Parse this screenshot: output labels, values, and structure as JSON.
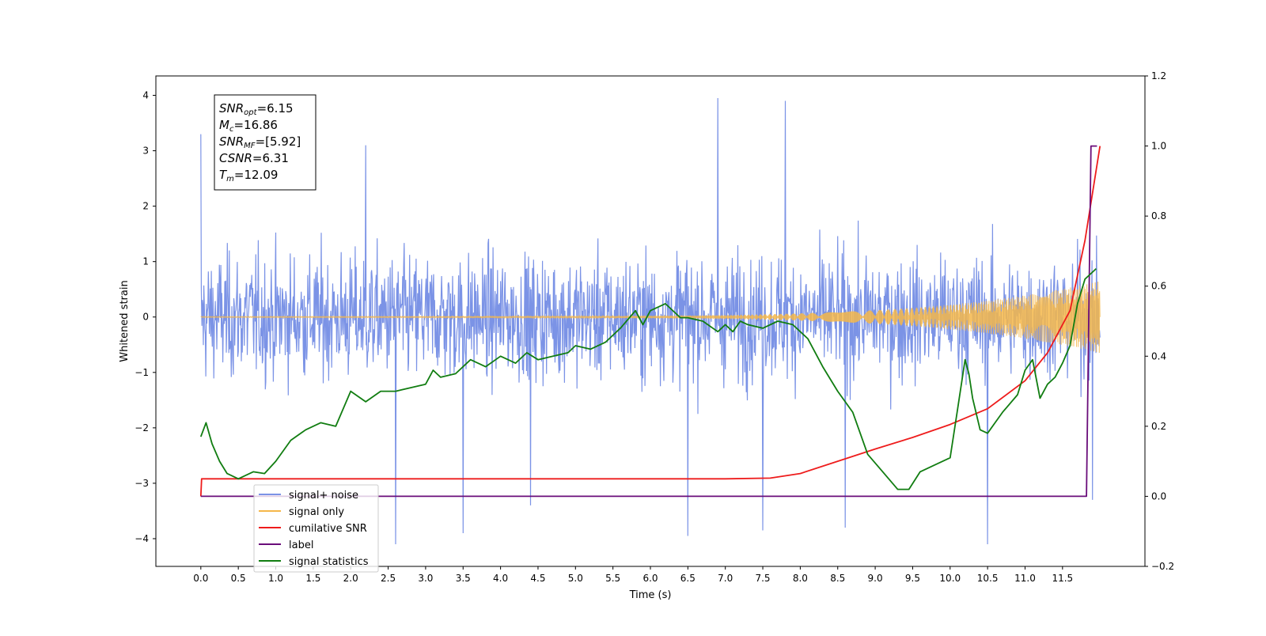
{
  "chart_data": {
    "type": "line",
    "xlabel": "Time (s)",
    "ylabel_left": "Whitened strain",
    "ylabel_right": "",
    "xlim": [
      -0.6,
      12.6
    ],
    "ylim_left": [
      -4.5,
      4.35
    ],
    "ylim_right": [
      -0.2,
      1.2
    ],
    "x_ticks": [
      0.0,
      0.5,
      1.0,
      1.5,
      2.0,
      2.5,
      3.0,
      3.5,
      4.0,
      4.5,
      5.0,
      5.5,
      6.0,
      6.5,
      7.0,
      7.5,
      8.0,
      8.5,
      9.0,
      9.5,
      10.0,
      10.5,
      11.0,
      11.5
    ],
    "x_tick_labels": [
      "0.0",
      "0.5",
      "1.0",
      "1.5",
      "2.0",
      "2.5",
      "3.0",
      "3.5",
      "4.0",
      "4.5",
      "5.0",
      "5.5",
      "6.0",
      "6.5",
      "7.0",
      "7.5",
      "8.0",
      "8.5",
      "9.0",
      "9.5",
      "10.0",
      "10.5",
      "11.0",
      "11.5"
    ],
    "y_ticks_left": [
      -4,
      -3,
      -2,
      -1,
      0,
      1,
      2,
      3,
      4
    ],
    "y_tick_labels_left": [
      "−4",
      "−3",
      "−2",
      "−1",
      "0",
      "1",
      "2",
      "3",
      "4"
    ],
    "y_ticks_right": [
      -0.2,
      0.0,
      0.2,
      0.4,
      0.6,
      0.8,
      1.0,
      1.2
    ],
    "y_tick_labels_right": [
      "−0.2",
      "0.0",
      "0.2",
      "0.4",
      "0.6",
      "0.8",
      "1.0",
      "1.2"
    ],
    "grid": false,
    "legend_placement": "lower-left",
    "annotation_box": {
      "lines": [
        {
          "main": "SNR",
          "sub": "opt",
          "rest": "=6.15"
        },
        {
          "main": "M",
          "sub": "c",
          "rest": "=16.86"
        },
        {
          "main": "SNR",
          "sub": "MF",
          "rest": "=[5.92]"
        },
        {
          "main": "CSNR",
          "sub": "",
          "rest": "=6.31"
        },
        {
          "main": "T",
          "sub": "m",
          "rest": "=12.09"
        }
      ]
    },
    "series": [
      {
        "name": "signal+ noise",
        "axis": "left",
        "color": "#7b93e6",
        "style": "noise",
        "x_range": [
          0.0,
          12.0
        ],
        "typical_range": [
          -1.5,
          1.5
        ],
        "extremes": [
          {
            "x": 0.0,
            "y": 3.3
          },
          {
            "x": 2.2,
            "y": 3.1
          },
          {
            "x": 2.6,
            "y": -4.1
          },
          {
            "x": 3.5,
            "y": -3.9
          },
          {
            "x": 4.4,
            "y": -3.4
          },
          {
            "x": 6.5,
            "y": -3.95
          },
          {
            "x": 6.9,
            "y": 3.95
          },
          {
            "x": 7.5,
            "y": -3.85
          },
          {
            "x": 7.8,
            "y": 3.9
          },
          {
            "x": 8.6,
            "y": -3.8
          },
          {
            "x": 10.5,
            "y": -4.1
          },
          {
            "x": 11.9,
            "y": -3.3
          }
        ]
      },
      {
        "name": "signal only",
        "axis": "left",
        "color": "#f5b74a",
        "style": "chirp",
        "x_range": [
          0.0,
          12.0
        ],
        "amplitude_start": 0.01,
        "amplitude_end": 0.65
      },
      {
        "name": "cumilative SNR",
        "axis": "right",
        "color": "#ee1c1c",
        "x": [
          0.0,
          0.01,
          1.0,
          3.0,
          5.0,
          7.0,
          7.6,
          8.0,
          8.5,
          9.0,
          9.5,
          10.0,
          10.5,
          11.0,
          11.3,
          11.6,
          11.8,
          12.0
        ],
        "values": [
          0.0,
          0.05,
          0.05,
          0.05,
          0.05,
          0.05,
          0.052,
          0.065,
          0.1,
          0.135,
          0.168,
          0.205,
          0.25,
          0.33,
          0.41,
          0.53,
          0.73,
          1.0
        ]
      },
      {
        "name": "label",
        "axis": "right",
        "color": "#6a0d7a",
        "x": [
          0.0,
          11.82,
          11.88,
          11.96
        ],
        "values": [
          0.0,
          0.0,
          1.0,
          1.0
        ]
      },
      {
        "name": "signal statistics",
        "axis": "right",
        "color": "#117d11",
        "x": [
          0.0,
          0.07,
          0.15,
          0.25,
          0.35,
          0.5,
          0.7,
          0.85,
          1.0,
          1.2,
          1.4,
          1.6,
          1.8,
          2.0,
          2.2,
          2.4,
          2.6,
          2.8,
          3.0,
          3.1,
          3.2,
          3.4,
          3.6,
          3.8,
          4.0,
          4.2,
          4.35,
          4.5,
          4.7,
          4.9,
          5.0,
          5.2,
          5.4,
          5.6,
          5.8,
          5.9,
          6.0,
          6.2,
          6.4,
          6.5,
          6.7,
          6.9,
          7.0,
          7.1,
          7.2,
          7.3,
          7.5,
          7.7,
          7.9,
          8.1,
          8.3,
          8.5,
          8.7,
          8.9,
          9.1,
          9.3,
          9.45,
          9.6,
          9.8,
          10.0,
          10.1,
          10.2,
          10.25,
          10.3,
          10.4,
          10.5,
          10.6,
          10.7,
          10.9,
          11.0,
          11.1,
          11.2,
          11.3,
          11.4,
          11.5,
          11.6,
          11.7,
          11.8,
          11.95
        ],
        "values": [
          0.17,
          0.21,
          0.15,
          0.1,
          0.065,
          0.05,
          0.07,
          0.065,
          0.1,
          0.16,
          0.19,
          0.21,
          0.2,
          0.3,
          0.27,
          0.3,
          0.3,
          0.31,
          0.32,
          0.36,
          0.34,
          0.35,
          0.39,
          0.37,
          0.4,
          0.38,
          0.41,
          0.39,
          0.4,
          0.41,
          0.43,
          0.42,
          0.44,
          0.48,
          0.53,
          0.49,
          0.53,
          0.55,
          0.51,
          0.51,
          0.5,
          0.47,
          0.49,
          0.47,
          0.5,
          0.49,
          0.48,
          0.5,
          0.49,
          0.45,
          0.37,
          0.3,
          0.24,
          0.12,
          0.07,
          0.02,
          0.02,
          0.07,
          0.09,
          0.11,
          0.25,
          0.39,
          0.35,
          0.28,
          0.19,
          0.18,
          0.21,
          0.24,
          0.29,
          0.36,
          0.39,
          0.28,
          0.32,
          0.34,
          0.38,
          0.43,
          0.55,
          0.62,
          0.65
        ]
      }
    ]
  }
}
